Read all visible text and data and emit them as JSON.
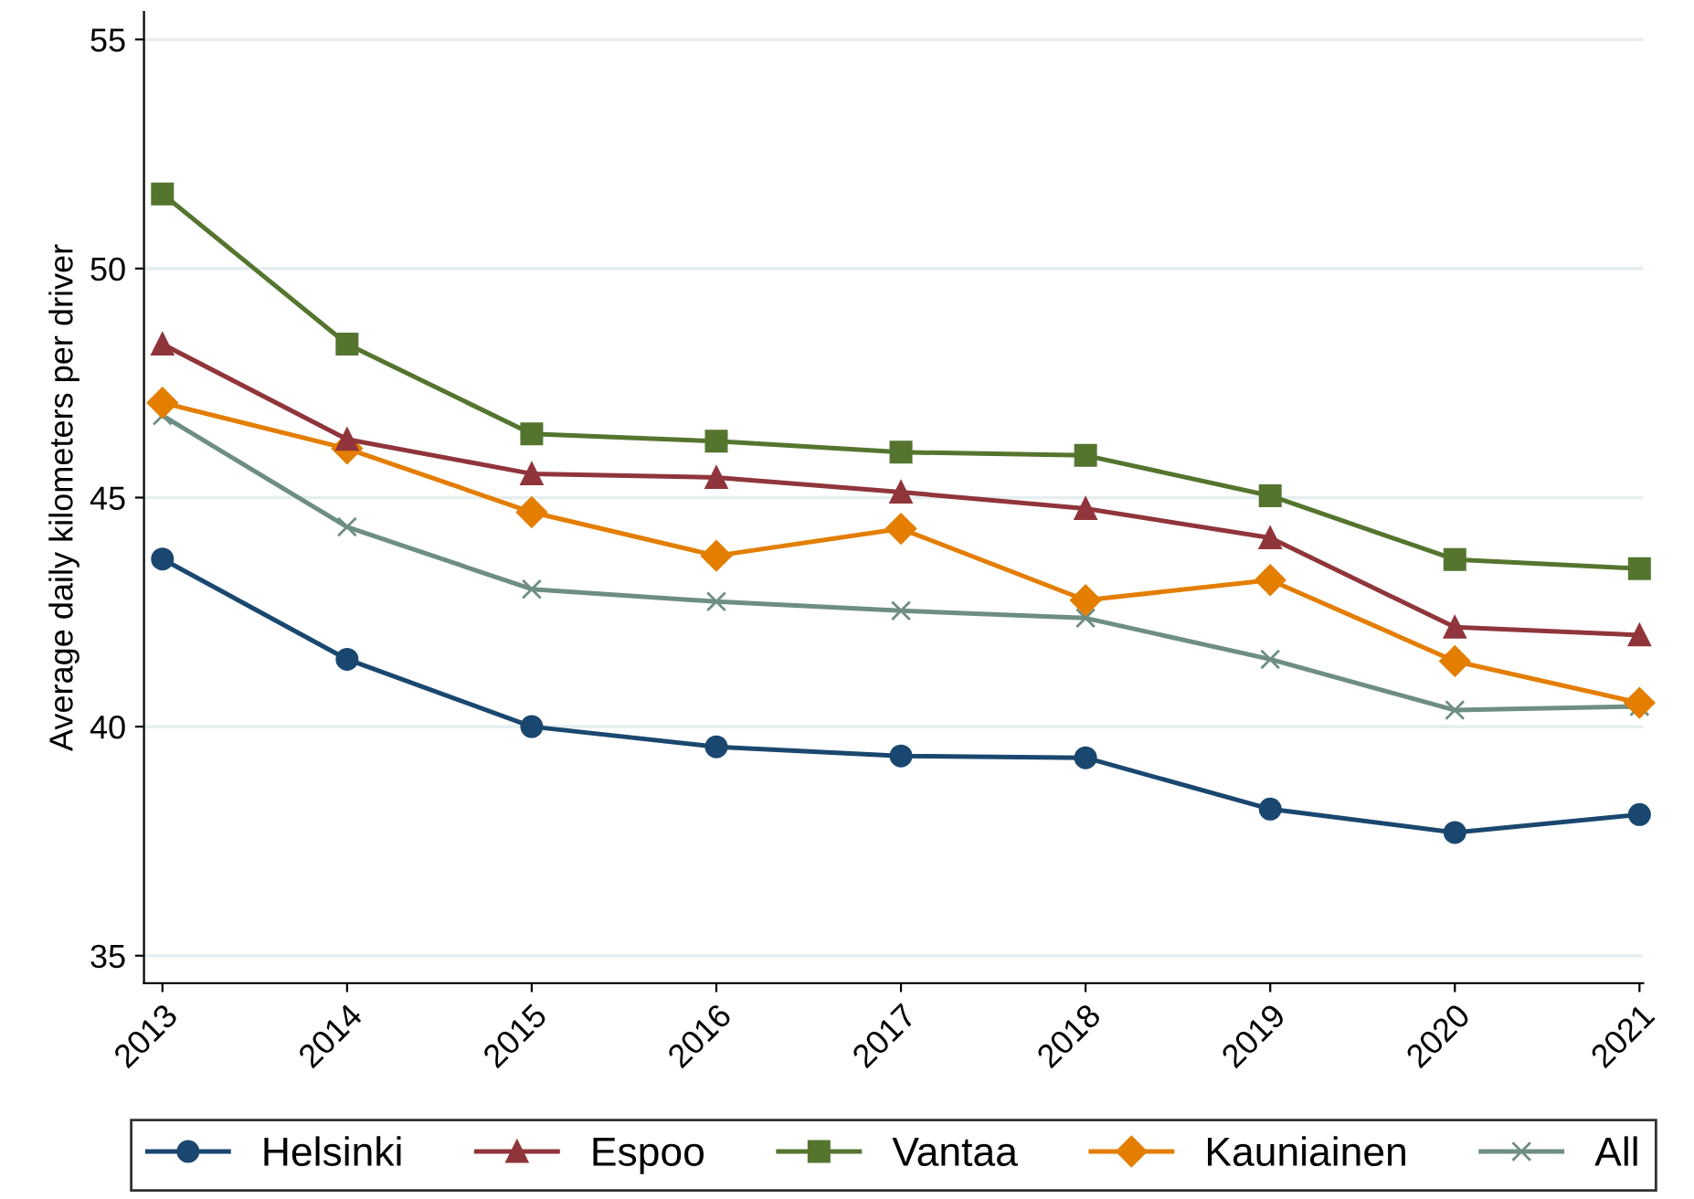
{
  "chart_data": {
    "type": "line",
    "ylabel": "Average daily kilometers per driver",
    "categories": [
      "2013",
      "2014",
      "2015",
      "2016",
      "2017",
      "2018",
      "2019",
      "2020",
      "2021"
    ],
    "series": [
      {
        "name": "Helsinki",
        "color": "#1a476f",
        "marker": "circle",
        "values": [
          43.66,
          41.47,
          40.0,
          39.56,
          39.36,
          39.32,
          38.2,
          37.69,
          38.08
        ]
      },
      {
        "name": "Espoo",
        "color": "#90353b",
        "marker": "triangle",
        "values": [
          48.35,
          46.27,
          45.52,
          45.44,
          45.12,
          44.76,
          44.12,
          42.17,
          42.0
        ]
      },
      {
        "name": "Vantaa",
        "color": "#55752f",
        "marker": "square",
        "values": [
          51.63,
          48.35,
          46.39,
          46.23,
          45.99,
          45.92,
          45.04,
          43.65,
          43.45
        ]
      },
      {
        "name": "Kauniainen",
        "color": "#e37e00",
        "marker": "diamond",
        "values": [
          47.07,
          46.07,
          44.68,
          43.73,
          44.32,
          42.76,
          43.2,
          41.43,
          40.52
        ]
      },
      {
        "name": "All",
        "color": "#6e8e84",
        "marker": "cross",
        "values": [
          46.79,
          44.36,
          43.0,
          42.73,
          42.53,
          42.37,
          41.47,
          40.36,
          40.44
        ]
      }
    ],
    "ylim": [
      34.4,
      55.6
    ],
    "yticks": [
      35,
      40,
      45,
      50,
      55
    ],
    "grid": "y",
    "legend": "bottom",
    "line_style": "solid"
  }
}
